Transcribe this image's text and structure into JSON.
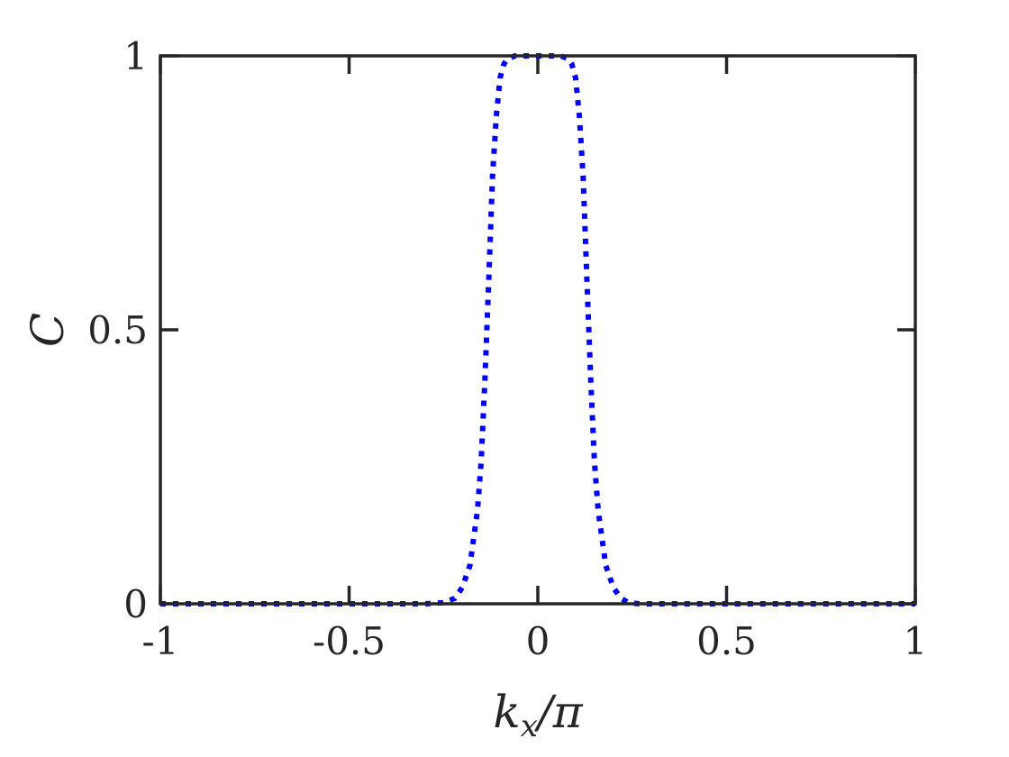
{
  "chart_data": {
    "type": "line",
    "xlabel": {
      "base": "k",
      "sub": "x",
      "rest": "/π"
    },
    "ylabel": "C",
    "xlim": [
      -1,
      1
    ],
    "ylim": [
      0,
      1
    ],
    "xticks": [
      {
        "value": -1,
        "label": "-1"
      },
      {
        "value": -0.5,
        "label": "-0.5"
      },
      {
        "value": 0,
        "label": "0"
      },
      {
        "value": 0.5,
        "label": "0.5"
      },
      {
        "value": 1,
        "label": "1"
      }
    ],
    "yticks": [
      {
        "value": 0,
        "label": "0"
      },
      {
        "value": 0.5,
        "label": "0.5"
      },
      {
        "value": 1,
        "label": "1"
      }
    ],
    "grid": false,
    "series": [
      {
        "color": "#0000ff",
        "style": "dotted",
        "x": [
          -1.0,
          -0.5,
          -0.3,
          -0.25,
          -0.22,
          -0.2,
          -0.18,
          -0.16,
          -0.15,
          -0.14,
          -0.13,
          -0.12,
          -0.11,
          -0.1,
          -0.09,
          -0.08,
          -0.06,
          -0.04,
          -0.02,
          0.0,
          0.02,
          0.04,
          0.06,
          0.08,
          0.09,
          0.1,
          0.11,
          0.12,
          0.13,
          0.14,
          0.15,
          0.16,
          0.18,
          0.2,
          0.22,
          0.24,
          0.27,
          0.3,
          0.5,
          1.0
        ],
        "y": [
          0.0,
          0.0,
          0.0,
          0.002,
          0.01,
          0.03,
          0.07,
          0.17,
          0.26,
          0.41,
          0.59,
          0.78,
          0.89,
          0.96,
          0.985,
          0.995,
          1.0,
          1.0,
          1.0,
          1.0,
          1.0,
          1.0,
          1.0,
          0.995,
          0.985,
          0.96,
          0.89,
          0.78,
          0.59,
          0.41,
          0.26,
          0.17,
          0.07,
          0.03,
          0.01,
          0.002,
          0.0,
          0.0,
          0.0,
          0.0
        ]
      }
    ]
  }
}
